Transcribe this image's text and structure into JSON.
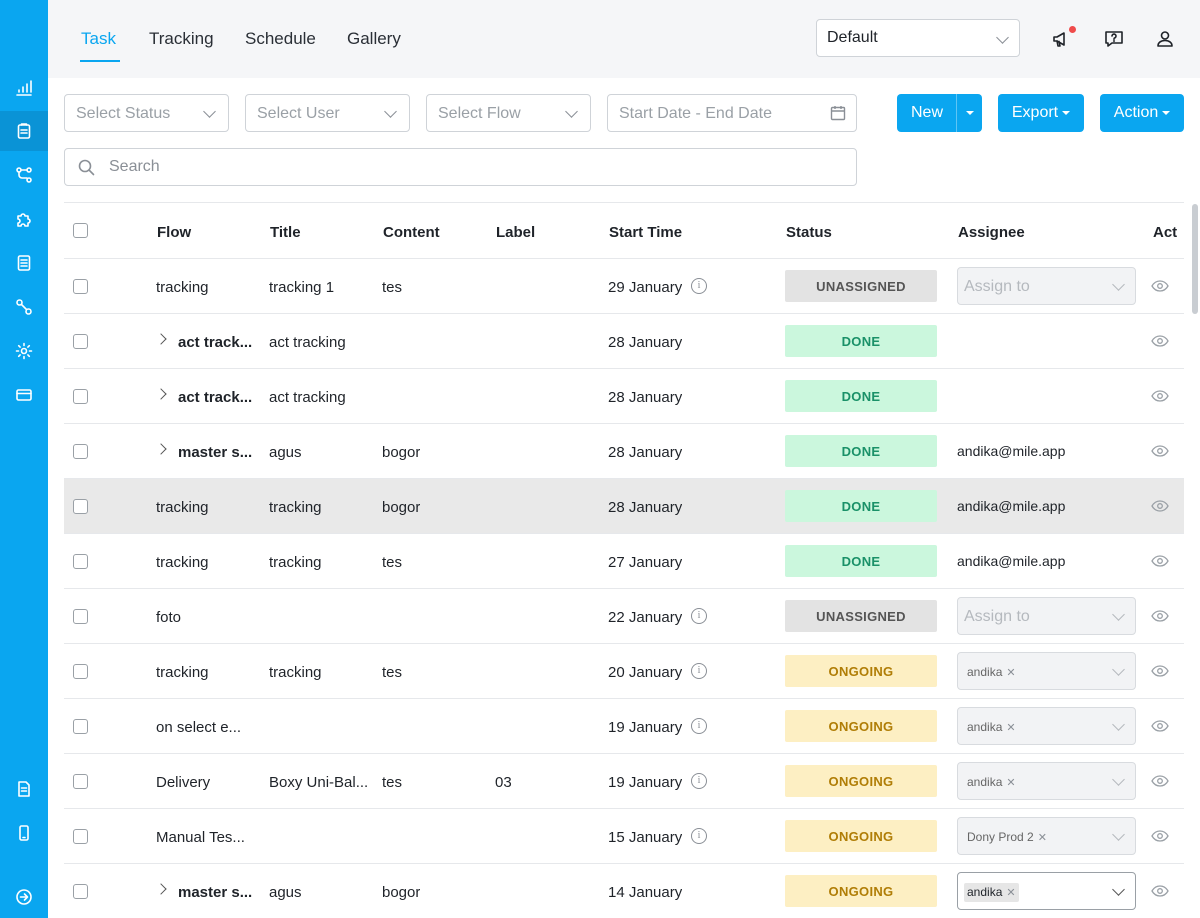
{
  "tabs": [
    {
      "label": "Task"
    },
    {
      "label": "Tracking"
    },
    {
      "label": "Schedule"
    },
    {
      "label": "Gallery"
    }
  ],
  "view_select": {
    "value": "Default"
  },
  "filters": {
    "status_placeholder": "Select Status",
    "user_placeholder": "Select User",
    "flow_placeholder": "Select Flow",
    "date_placeholder": "Start Date - End Date"
  },
  "buttons": {
    "new_label": "New",
    "export_label": "Export",
    "action_label": "Action"
  },
  "search": {
    "placeholder": "Search"
  },
  "table": {
    "columns": [
      "Flow",
      "Title",
      "Content",
      "Label",
      "Start Time",
      "Status",
      "Assignee",
      "Act"
    ],
    "rows": [
      {
        "flow": "tracking",
        "flow_bold": false,
        "expandable": false,
        "title": "tracking 1",
        "content": "tes",
        "label": "",
        "start_time": "29 January",
        "info": true,
        "status": "UNASSIGNED",
        "assignee_type": "select",
        "assignee": "Assign to"
      },
      {
        "flow": "act track...",
        "flow_bold": true,
        "expandable": true,
        "title": "act tracking",
        "content": "",
        "label": "",
        "start_time": "28 January",
        "info": false,
        "status": "DONE",
        "assignee_type": "none",
        "assignee": ""
      },
      {
        "flow": "act track...",
        "flow_bold": true,
        "expandable": true,
        "title": "act tracking",
        "content": "",
        "label": "",
        "start_time": "28 January",
        "info": false,
        "status": "DONE",
        "assignee_type": "none",
        "assignee": ""
      },
      {
        "flow": "master s...",
        "flow_bold": true,
        "expandable": true,
        "title": "agus",
        "content": "bogor",
        "label": "",
        "start_time": "28 January",
        "info": false,
        "status": "DONE",
        "assignee_type": "text",
        "assignee": "andika@mile.app"
      },
      {
        "flow": "tracking",
        "flow_bold": false,
        "expandable": false,
        "title": "tracking",
        "content": "bogor",
        "label": "",
        "start_time": "28 January",
        "info": false,
        "status": "DONE",
        "assignee_type": "text",
        "assignee": "andika@mile.app",
        "highlight": true
      },
      {
        "flow": "tracking",
        "flow_bold": false,
        "expandable": false,
        "title": "tracking",
        "content": "tes",
        "label": "",
        "start_time": "27 January",
        "info": false,
        "status": "DONE",
        "assignee_type": "text",
        "assignee": "andika@mile.app"
      },
      {
        "flow": "foto",
        "flow_bold": false,
        "expandable": false,
        "title": "",
        "content": "",
        "label": "",
        "start_time": "22 January",
        "info": true,
        "status": "UNASSIGNED",
        "assignee_type": "select",
        "assignee": "Assign to"
      },
      {
        "flow": "tracking",
        "flow_bold": false,
        "expandable": false,
        "title": "tracking",
        "content": "tes",
        "label": "",
        "start_time": "20 January",
        "info": true,
        "status": "ONGOING",
        "assignee_type": "tag",
        "assignee": "andika"
      },
      {
        "flow": "on select e...",
        "flow_bold": false,
        "expandable": false,
        "title": "",
        "content": "",
        "label": "",
        "start_time": "19 January",
        "info": true,
        "status": "ONGOING",
        "assignee_type": "tag",
        "assignee": "andika"
      },
      {
        "flow": "Delivery",
        "flow_bold": false,
        "expandable": false,
        "title": "Boxy Uni-Bal...",
        "content": "tes",
        "label": "03",
        "start_time": "19 January",
        "info": true,
        "status": "ONGOING",
        "assignee_type": "tag",
        "assignee": "andika"
      },
      {
        "flow": "Manual Tes...",
        "flow_bold": false,
        "expandable": false,
        "title": "",
        "content": "",
        "label": "",
        "start_time": "15 January",
        "info": true,
        "status": "ONGOING",
        "assignee_type": "tag",
        "assignee": "Dony Prod 2"
      },
      {
        "flow": "master s...",
        "flow_bold": true,
        "expandable": true,
        "title": "agus",
        "content": "bogor",
        "label": "",
        "start_time": "14 January",
        "info": false,
        "status": "ONGOING",
        "assignee_type": "tag-white",
        "assignee": "andika"
      }
    ]
  },
  "colors": {
    "accent": "#0aa6f0",
    "done": "#1a9168",
    "ongoing": "#b07d06",
    "unassigned": "#555555"
  }
}
